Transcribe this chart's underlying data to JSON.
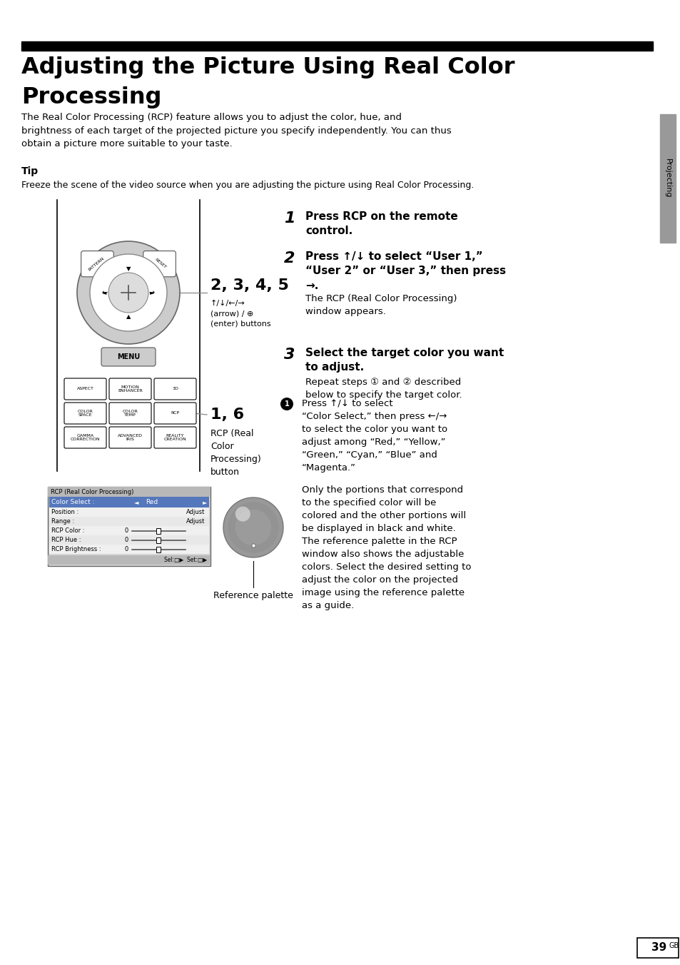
{
  "title_line1": "Adjusting the Picture Using Real Color",
  "title_line2": "Processing",
  "page_number": "39",
  "page_label": "GB",
  "sidebar_text": "Projecting",
  "intro_text": "The Real Color Processing (RCP) feature allows you to adjust the color, hue, and\nbrightness of each target of the projected picture you specify independently. You can thus\nobtain a picture more suitable to your taste.",
  "tip_header": "Tip",
  "tip_text": "Freeze the scene of the video source when you are adjusting the picture using Real Color Processing.",
  "step1_num": "1",
  "step1_text": "Press RCP on the remote\ncontrol.",
  "step2_num": "2",
  "step2_text": "Press ↑/↓ to select “User 1,”\n“User 2” or “User 3,” then press\n→.",
  "step2_sub": "The RCP (Real Color Processing)\nwindow appears.",
  "step3_num": "3",
  "step3_text": "Select the target color you want\nto adjust.",
  "step3_sub": "Repeat steps ① and ② described\nbelow to specify the target color.",
  "bullet1_text": "Press ↑/↓ to select\n“Color Select,” then press ←/→\nto select the color you want to\nadjust among “Red,” “Yellow,”\n“Green,” “Cyan,” “Blue” and\n“Magenta.”",
  "only_text": "Only the portions that correspond\nto the specified color will be\ncolored and the other portions will\nbe displayed in black and white.\nThe reference palette in the RCP\nwindow also shows the adjustable\ncolors. Select the desired setting to\nadjust the color on the projected\nimage using the reference palette\nas a guide.",
  "label_235": "2, 3, 4, 5",
  "label_235_sub": "↑/↓/←/→\n(arrow) / ⊕\n(enter) buttons",
  "label_16": "1, 6",
  "label_16_sub": "RCP (Real\nColor\nProcessing)\nbutton",
  "ref_palette_label": "Reference palette",
  "rcp_win_title": "RCP (Real Color Processing)",
  "rcp_color_select": "Color Select :",
  "rcp_red": "Red",
  "rcp_rows": [
    [
      "Position :",
      "Adjust",
      false
    ],
    [
      "Range :",
      "Adjust",
      false
    ],
    [
      "RCP Color :",
      "0",
      true
    ],
    [
      "RCP Hue :",
      "0",
      true
    ],
    [
      "RCP Brightness :",
      "0",
      true
    ]
  ],
  "rcp_status": "Sel:□▶  Set:□▶",
  "bg_color": "#ffffff",
  "text_color": "#000000",
  "sidebar_color": "#999999",
  "rcp_highlight_color": "#5577bb",
  "rcp_bg_color": "#d4d4d4",
  "rcp_title_bg": "#b8b8b8",
  "rcp_row_bg": "#ececec"
}
